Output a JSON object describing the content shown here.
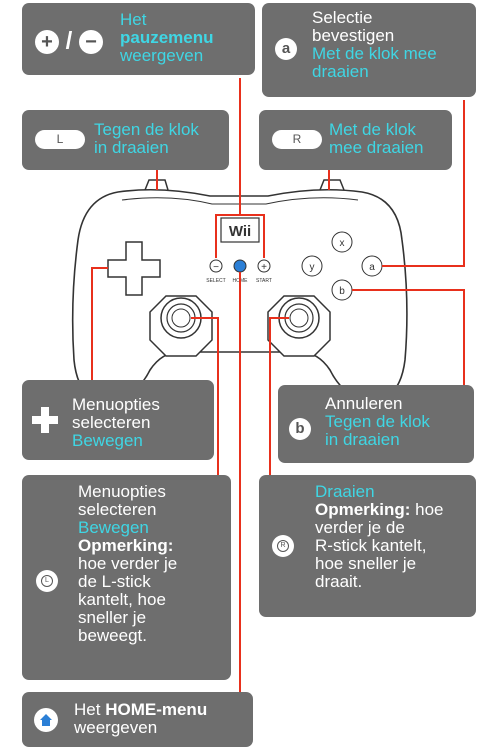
{
  "pause": {
    "line1": "Het",
    "line2": "pauzemenu",
    "line3": "weergeven"
  },
  "a_button": {
    "icon": "a",
    "line1": "Selectie",
    "line2": "bevestigen",
    "line3": "Met de klok mee",
    "line4": "draaien"
  },
  "l_button": {
    "icon": "L",
    "line1": "Tegen de klok",
    "line2": "in draaien"
  },
  "r_button": {
    "icon": "R",
    "line1": "Met de klok",
    "line2": "mee draaien"
  },
  "dpad": {
    "line1": "Menuopties",
    "line2": "selecteren",
    "line3": "Bewegen"
  },
  "b_button": {
    "icon": "b",
    "line1": "Annuleren",
    "line2": "Tegen de klok",
    "line3": "in draaien"
  },
  "lstick": {
    "line1": "Menuopties",
    "line2": "selecteren",
    "line3": "Bewegen",
    "note_label": "Opmerking:",
    "note": [
      "hoe verder je",
      "de L-stick",
      "kantelt, hoe",
      "sneller je",
      "beweegt."
    ]
  },
  "rstick": {
    "line1": "Draaien",
    "note_label": "Opmerking:",
    "note_rest": "hoe",
    "note": [
      "verder je de",
      "R-stick kantelt,",
      "hoe sneller je",
      "draait."
    ]
  },
  "home": {
    "line1": "Het",
    "line1b": "HOME-menu",
    "line2": "weergeven"
  },
  "controller": {
    "logo": "Wii",
    "select": "SELECT",
    "home": "HOME",
    "start": "START",
    "x": "x",
    "y": "y",
    "a": "a",
    "b": "b",
    "minus": "−",
    "plus": "+"
  },
  "colors": {
    "panel": "#6e6e6e",
    "cyan": "#3fd6e4",
    "line": "#e8301c"
  }
}
